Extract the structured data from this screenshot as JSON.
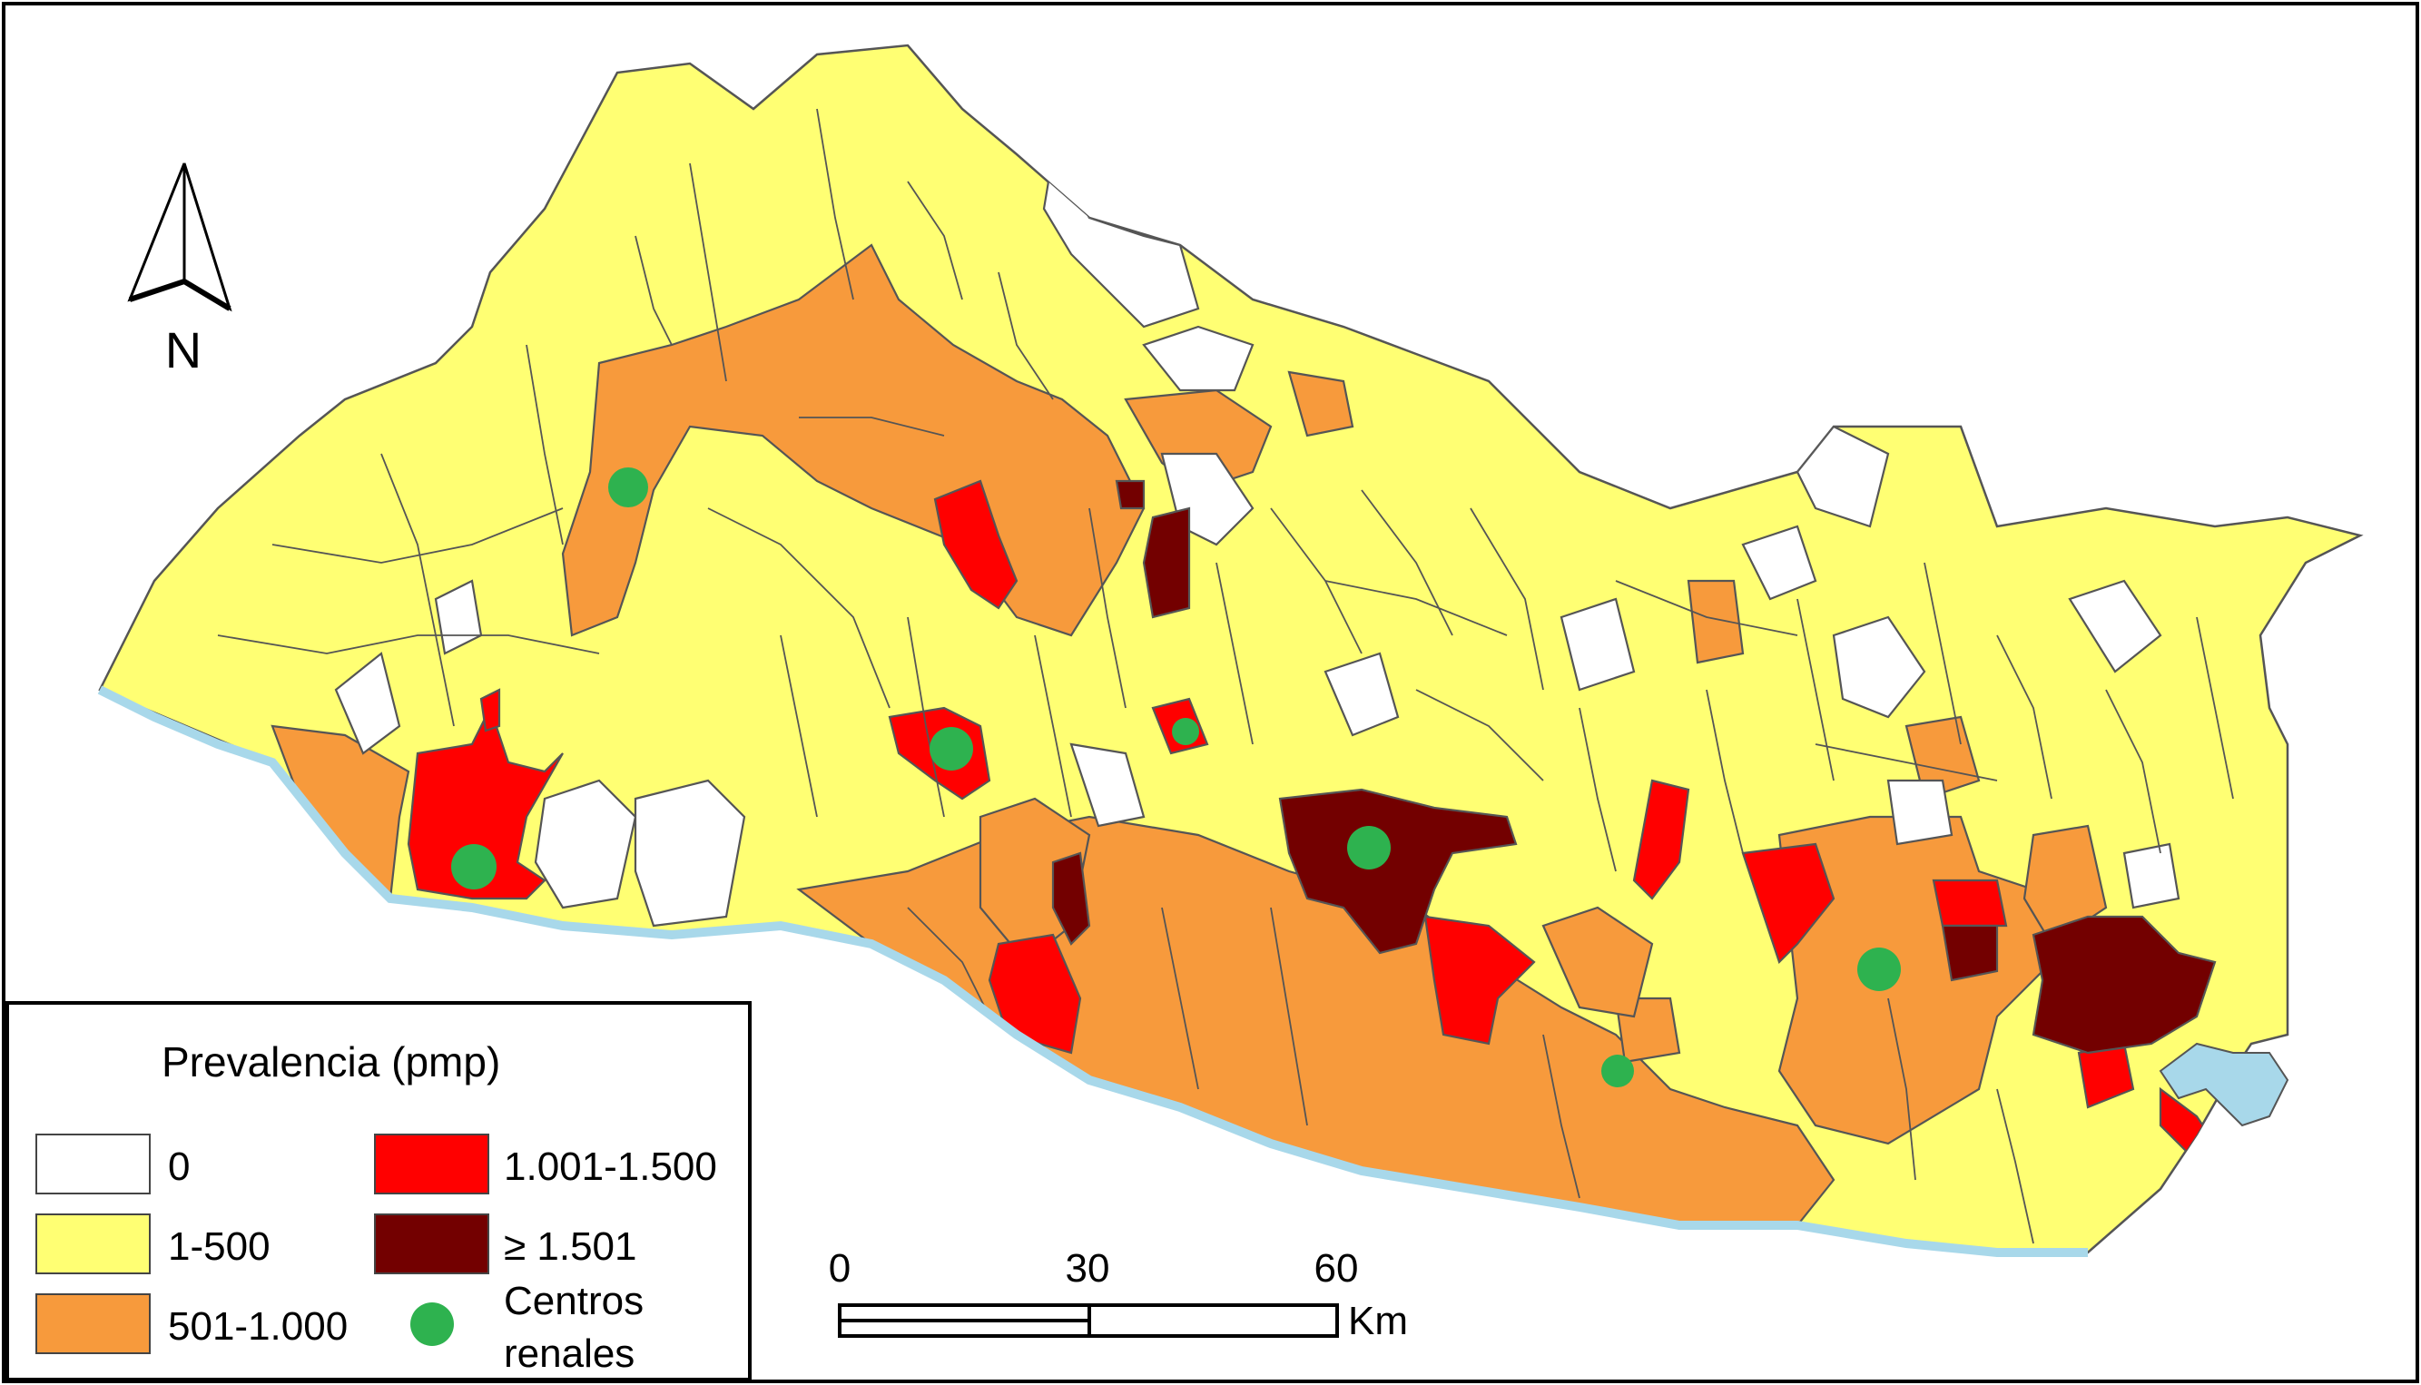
{
  "legend": {
    "title": "Prevalencia (pmp)",
    "items": [
      {
        "label": "0",
        "color": "#FFFFFF"
      },
      {
        "label": "1-500",
        "color": "#FFFF73"
      },
      {
        "label": "501-1.000",
        "color": "#F79A3C"
      },
      {
        "label": "1.001-1.500",
        "color": "#FF0000"
      },
      {
        "label": "≥ 1.501",
        "color": "#730000"
      }
    ],
    "centers_label_line1": "Centros",
    "centers_label_line2": "renales",
    "centers_color": "#2EB24F"
  },
  "north_arrow": {
    "label": "N"
  },
  "scale_bar": {
    "ticks": [
      "0",
      "30",
      "60"
    ],
    "unit": "Km"
  },
  "colors": {
    "sea": "#A8D8EA",
    "border": "#555555",
    "frame": "#000000"
  }
}
